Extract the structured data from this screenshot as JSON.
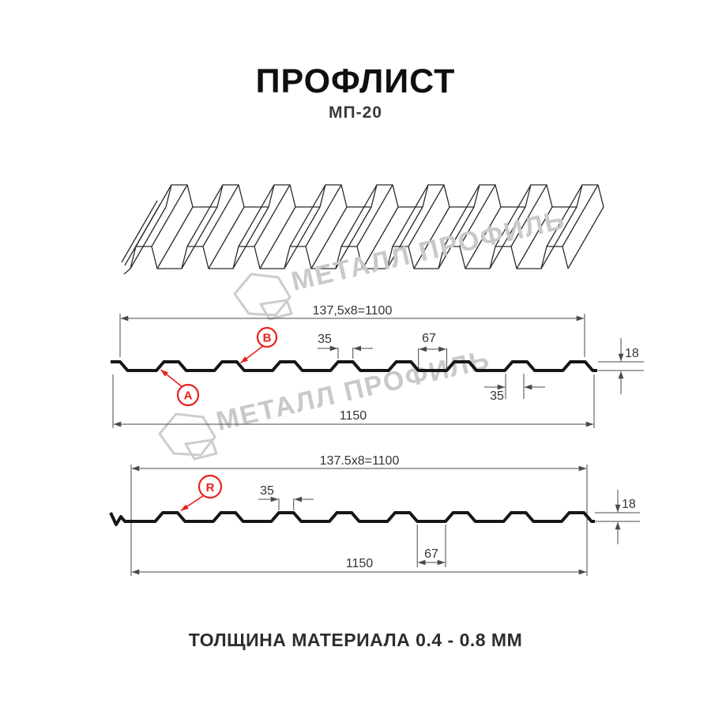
{
  "header": {
    "title": "ПРОФЛИСТ",
    "model": "МП-20"
  },
  "watermark": {
    "text": "МЕТАЛЛ ПРОФИЛЬ"
  },
  "colors": {
    "accent_red": "#e8211c",
    "watermark_gray": "#c9c9c9",
    "ink": "#161616",
    "dim_line": "#4a4a4a"
  },
  "sections": {
    "ab": {
      "top_width": "137,5x8=1100",
      "rib_top": "35",
      "groove": "67",
      "rib_bottom": "35",
      "height": "18",
      "total_width": "1150",
      "marker_a": "A",
      "marker_b": "B"
    },
    "r": {
      "top_width": "137.5x8=1100",
      "rib_top": "35",
      "groove": "67",
      "height": "18",
      "total_width": "1150",
      "marker_r": "R"
    }
  },
  "footer": {
    "thickness_note": "ТОЛЩИНА МАТЕРИАЛА 0.4 - 0.8 ММ"
  }
}
